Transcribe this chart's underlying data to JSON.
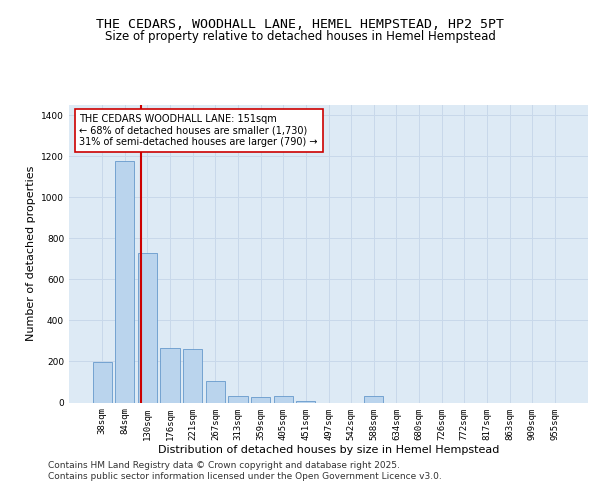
{
  "title_line1": "THE CEDARS, WOODHALL LANE, HEMEL HEMPSTEAD, HP2 5PT",
  "title_line2": "Size of property relative to detached houses in Hemel Hempstead",
  "xlabel": "Distribution of detached houses by size in Hemel Hempstead",
  "ylabel": "Number of detached properties",
  "categories": [
    "38sqm",
    "84sqm",
    "130sqm",
    "176sqm",
    "221sqm",
    "267sqm",
    "313sqm",
    "359sqm",
    "405sqm",
    "451sqm",
    "497sqm",
    "542sqm",
    "588sqm",
    "634sqm",
    "680sqm",
    "726sqm",
    "772sqm",
    "817sqm",
    "863sqm",
    "909sqm",
    "955sqm"
  ],
  "values": [
    195,
    1175,
    730,
    265,
    260,
    105,
    30,
    25,
    30,
    8,
    0,
    0,
    30,
    0,
    0,
    0,
    0,
    0,
    0,
    0,
    0
  ],
  "bar_color": "#bad4ed",
  "bar_edge_color": "#6699cc",
  "red_line_x": 1.72,
  "annotation_text": "THE CEDARS WOODHALL LANE: 151sqm\n← 68% of detached houses are smaller (1,730)\n31% of semi-detached houses are larger (790) →",
  "annotation_box_color": "#ffffff",
  "annotation_box_edge": "#cc0000",
  "red_line_color": "#cc0000",
  "ylim": [
    0,
    1450
  ],
  "yticks": [
    0,
    200,
    400,
    600,
    800,
    1000,
    1200,
    1400
  ],
  "grid_color": "#c8d8ea",
  "background_color": "#ddeaf5",
  "footer_line1": "Contains HM Land Registry data © Crown copyright and database right 2025.",
  "footer_line2": "Contains public sector information licensed under the Open Government Licence v3.0.",
  "title_fontsize": 9.5,
  "subtitle_fontsize": 8.5,
  "axis_label_fontsize": 8,
  "tick_fontsize": 6.5,
  "annotation_fontsize": 7,
  "footer_fontsize": 6.5
}
